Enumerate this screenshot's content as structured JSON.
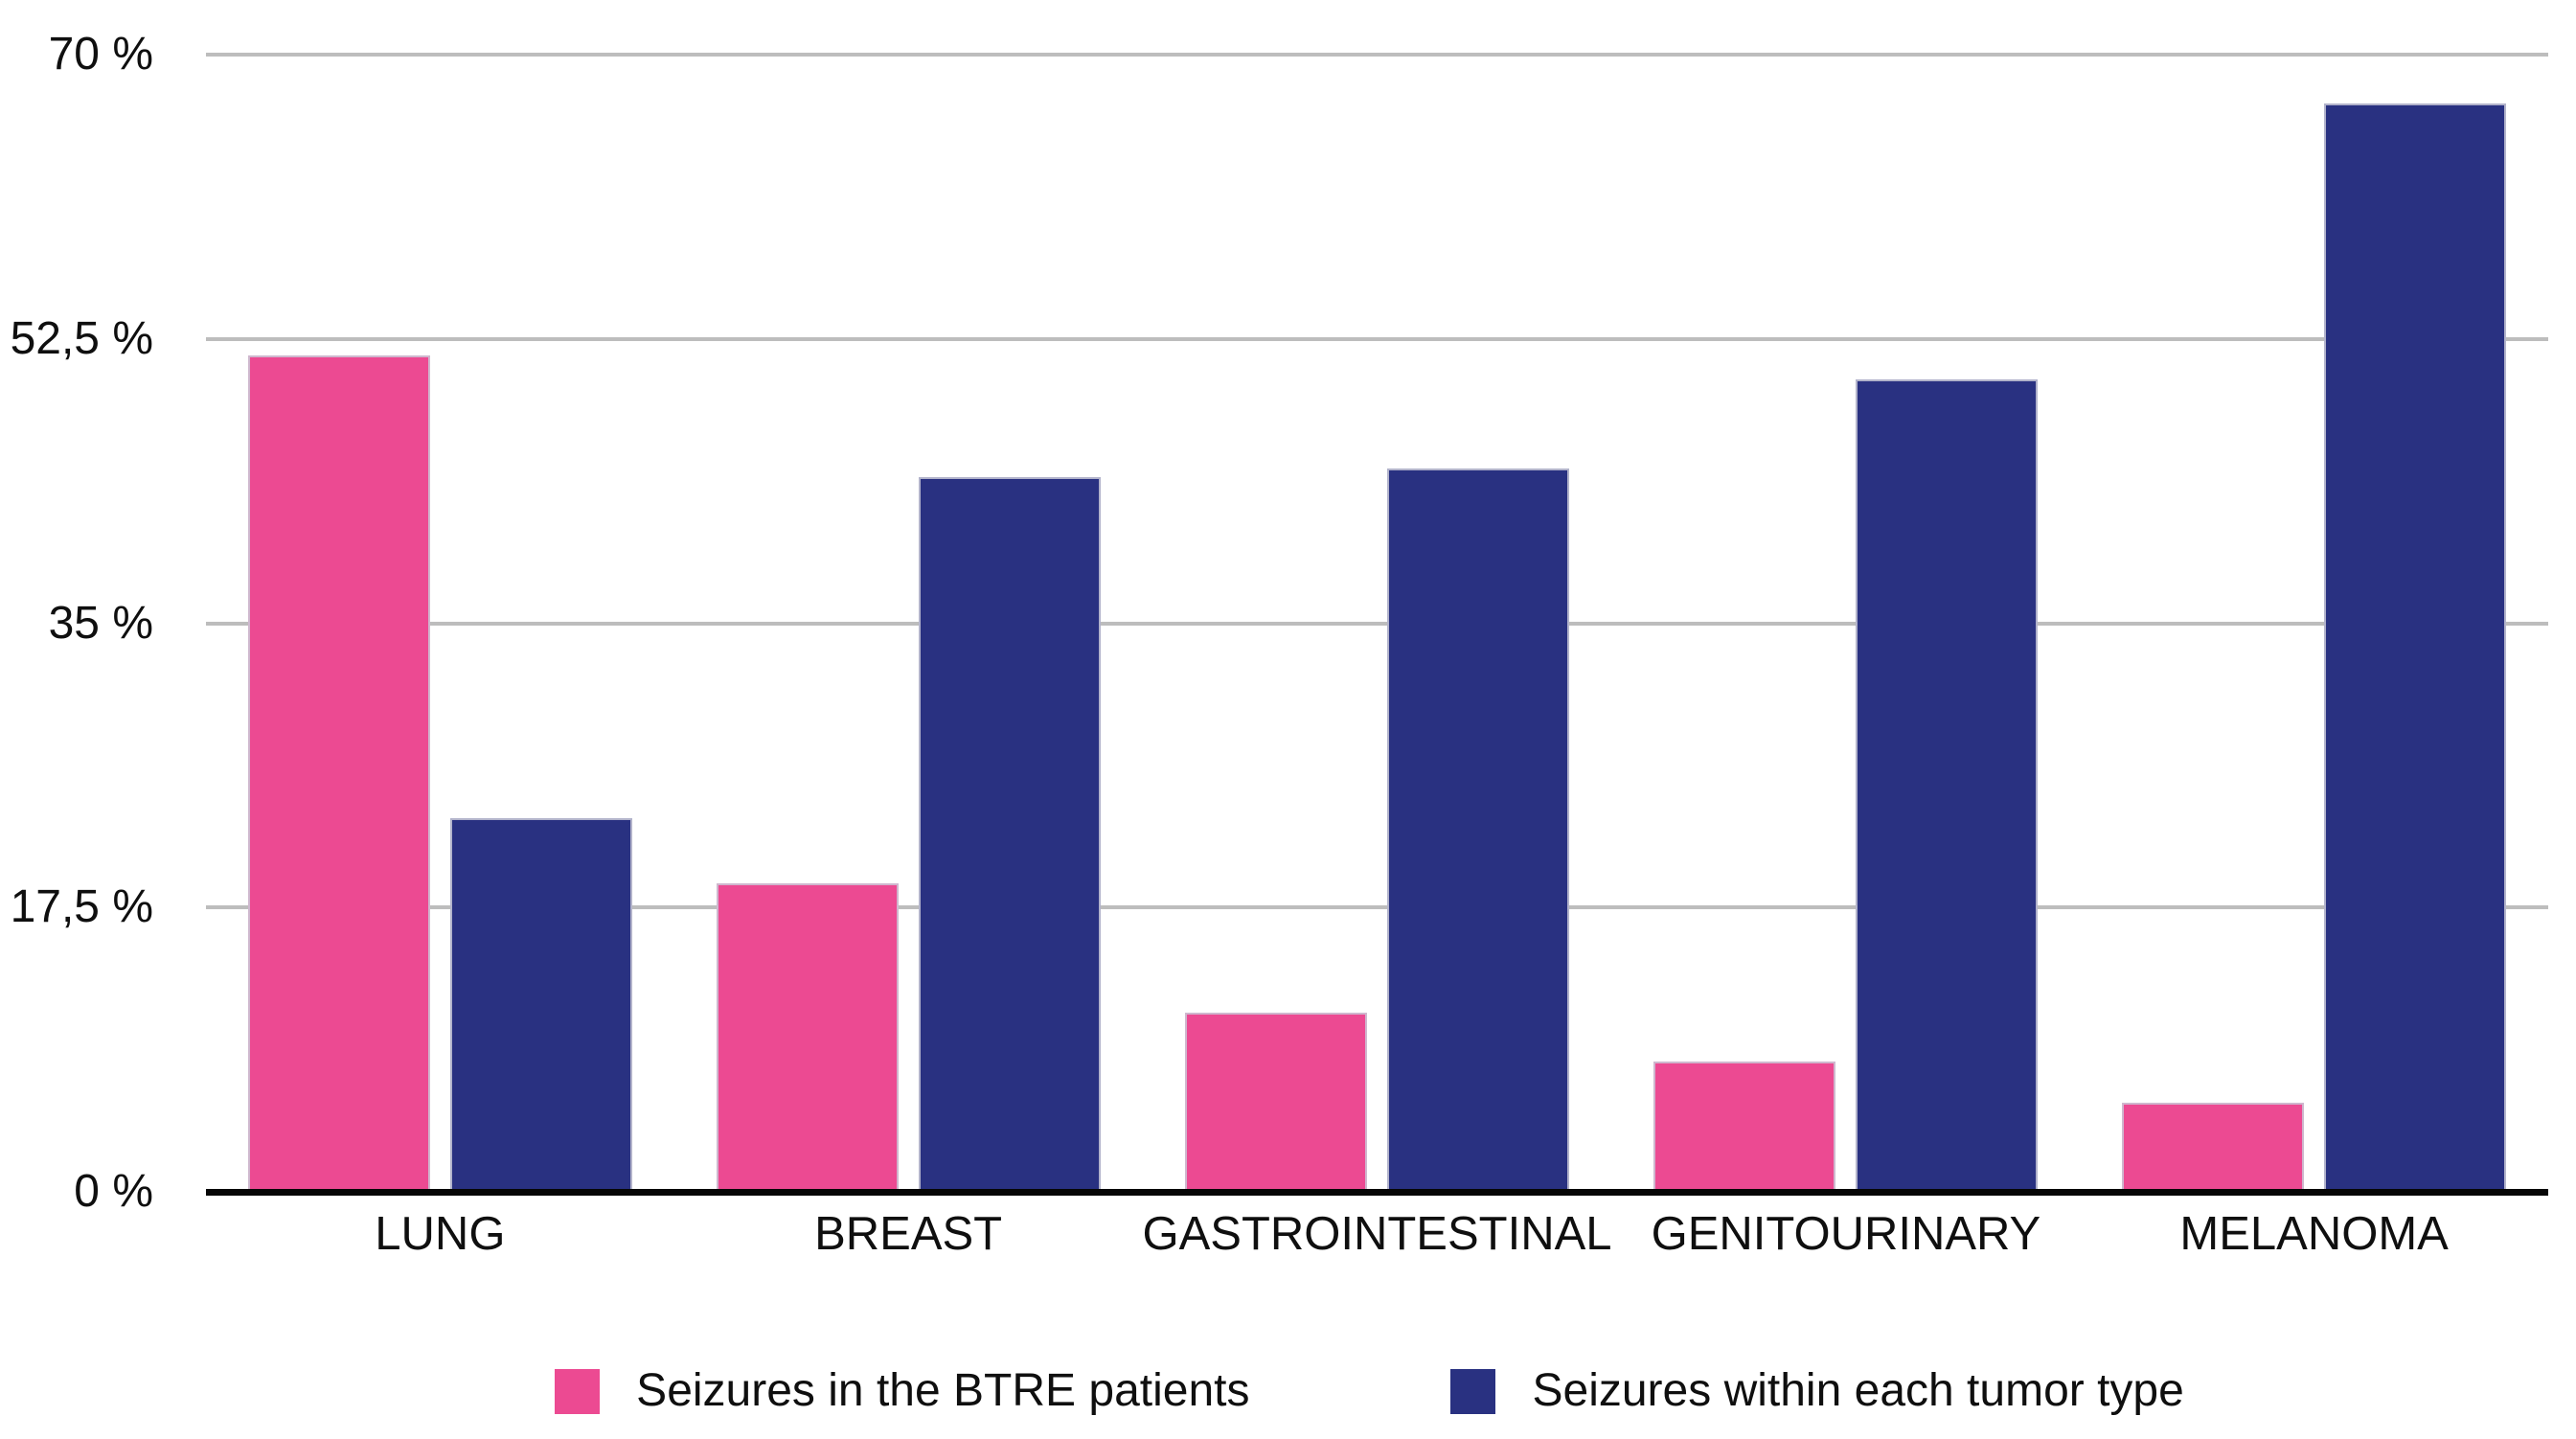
{
  "chart_data": {
    "type": "bar",
    "title": "",
    "categories": [
      "LUNG",
      "BREAST",
      "GASTROINTESTINAL",
      "GENITOURINARY",
      "MELANOMA"
    ],
    "series": [
      {
        "name": "Seizures in the BTRE patients",
        "color": "#EC4A92",
        "values": [
          51.5,
          19,
          11,
          8,
          5.5
        ]
      },
      {
        "name": "Seizures within each tumor type",
        "color": "#293181",
        "values": [
          23,
          44,
          44.5,
          50,
          67
        ]
      }
    ],
    "y_axis": {
      "min": 0,
      "max": 70,
      "unit": "%",
      "ticks": [
        {
          "label": "70 %",
          "value": 70
        },
        {
          "label": "52,5 %",
          "value": 52.5
        },
        {
          "label": "35 %",
          "value": 35
        },
        {
          "label": "17,5 %",
          "value": 17.5
        },
        {
          "label": "0 %",
          "value": 0
        }
      ]
    },
    "grid": true,
    "legend_position": "bottom",
    "colors": {
      "background": "#ffffff",
      "gridline": "#bdbdbd",
      "axis_line": "#060606",
      "text": "#0f0f0f"
    }
  }
}
